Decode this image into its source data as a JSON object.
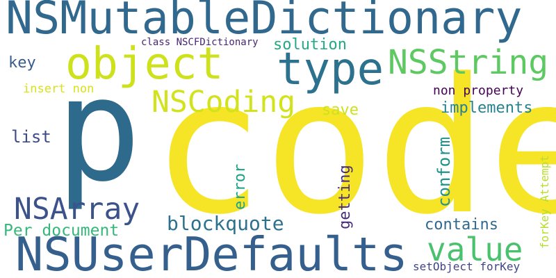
{
  "words": {
    "code": {
      "text": "code",
      "color": "#f6e526"
    },
    "p": {
      "text": "p",
      "color": "#2e6a8c"
    },
    "nsmutabledictionary": {
      "text": "NSMutableDictionary",
      "color": "#31688e"
    },
    "nsuserdefaults": {
      "text": "NSUserDefaults",
      "color": "#355f8d"
    },
    "object": {
      "text": "object",
      "color": "#cde11d"
    },
    "type": {
      "text": "type",
      "color": "#2c718e"
    },
    "nsstring": {
      "text": "NSString",
      "color": "#5ec962"
    },
    "nscoding": {
      "text": "NSCoding",
      "color": "#d2e21b"
    },
    "nsarray": {
      "text": "NSArray",
      "color": "#3b528b"
    },
    "value": {
      "text": "value",
      "color": "#4ac16d"
    },
    "blockquote": {
      "text": "blockquote",
      "color": "#2c728e"
    },
    "solution": {
      "text": "solution",
      "color": "#23a983"
    },
    "key": {
      "text": "key",
      "color": "#365c8d"
    },
    "insert_non": {
      "text": "insert non",
      "color": "#d8e219"
    },
    "class_nscfdictionary": {
      "text": "class NSCFDictionary",
      "color": "#482475"
    },
    "non_property": {
      "text": "non property",
      "color": "#440154"
    },
    "implements": {
      "text": "implements",
      "color": "#26828e"
    },
    "save": {
      "text": "save",
      "color": "#cde11d"
    },
    "list": {
      "text": "list",
      "color": "#3e4a89"
    },
    "error": {
      "text": "error",
      "color": "#1fa187"
    },
    "getting": {
      "text": "getting",
      "color": "#472d7b"
    },
    "conform": {
      "text": "conform",
      "color": "#21918c"
    },
    "forkey_attempt": {
      "text": "forKey Attempt",
      "color": "#b5de2b"
    },
    "per_document": {
      "text": "Per document",
      "color": "#35b779"
    },
    "contains": {
      "text": "contains",
      "color": "#31688e"
    },
    "setobject_forkey": {
      "text": "setObject forKey",
      "color": "#414487"
    }
  }
}
